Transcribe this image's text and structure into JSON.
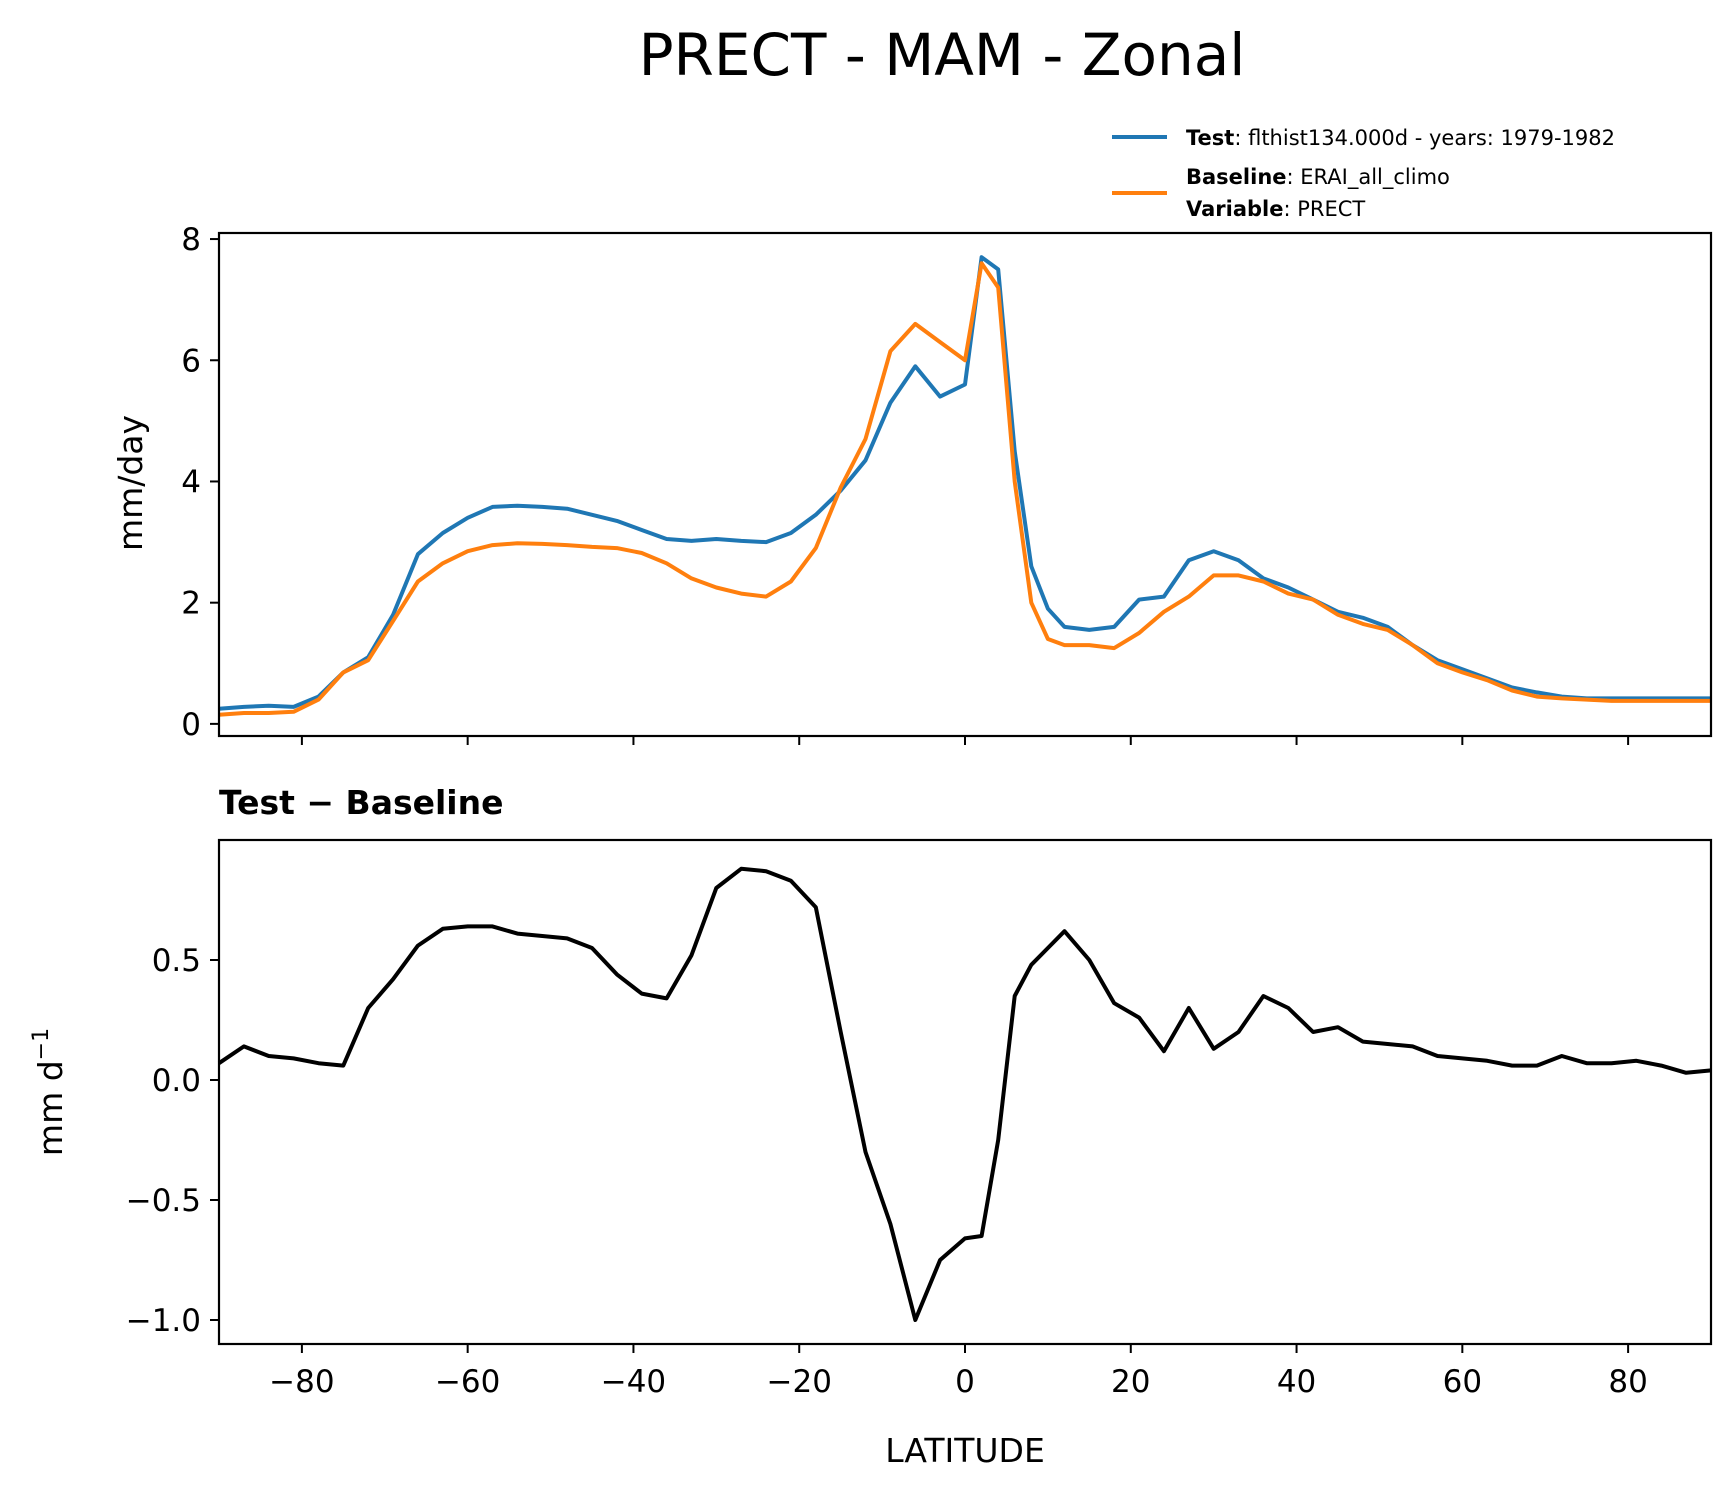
{
  "figure": {
    "title": "PRECT - MAM - Zonal"
  },
  "legend": {
    "entries": [
      {
        "key": "Test",
        "value": "flthist134.000d - years: 1979-1982",
        "color": "#1f77b4"
      },
      {
        "key": "Baseline",
        "value": "ERAI_all_climo",
        "color": "#ff7f0e"
      },
      {
        "key": "Variable",
        "value": "PRECT",
        "color": ""
      }
    ],
    "location": "top-right, outside axes"
  },
  "chart_data": [
    {
      "type": "line",
      "ylabel": "mm/day",
      "xlim": [
        -90,
        90
      ],
      "ylim": [
        -0.2,
        8.1
      ],
      "yticks": [
        "0",
        "2",
        "4",
        "6",
        "8"
      ],
      "ytick_values": [
        0,
        2,
        4,
        6,
        8
      ],
      "xtick_values": [
        -80,
        -60,
        -40,
        -20,
        0,
        20,
        40,
        60,
        80
      ],
      "grid": false,
      "x": [
        -90,
        -87,
        -84,
        -81,
        -78,
        -75,
        -72,
        -69,
        -66,
        -63,
        -60,
        -57,
        -54,
        -51,
        -48,
        -45,
        -42,
        -39,
        -36,
        -33,
        -30,
        -27,
        -24,
        -21,
        -18,
        -15,
        -12,
        -9,
        -6,
        -3,
        0,
        2,
        4,
        6,
        8,
        10,
        12,
        15,
        18,
        21,
        24,
        27,
        30,
        33,
        36,
        39,
        42,
        45,
        48,
        51,
        54,
        57,
        60,
        63,
        66,
        69,
        72,
        75,
        78,
        81,
        84,
        87,
        90
      ],
      "series": [
        {
          "name": "Test",
          "color": "#1f77b4",
          "values": [
            0.25,
            0.28,
            0.3,
            0.28,
            0.45,
            0.85,
            1.1,
            1.8,
            2.8,
            3.15,
            3.4,
            3.58,
            3.6,
            3.58,
            3.55,
            3.45,
            3.35,
            3.2,
            3.05,
            3.02,
            3.05,
            3.02,
            3.0,
            3.15,
            3.45,
            3.85,
            4.35,
            5.3,
            5.9,
            5.4,
            5.6,
            7.7,
            7.5,
            4.5,
            2.6,
            1.9,
            1.6,
            1.55,
            1.6,
            2.05,
            2.1,
            2.7,
            2.85,
            2.7,
            2.4,
            2.25,
            2.05,
            1.85,
            1.75,
            1.6,
            1.3,
            1.05,
            0.9,
            0.75,
            0.6,
            0.52,
            0.45,
            0.42,
            0.42,
            0.42,
            0.42,
            0.42,
            0.42
          ]
        },
        {
          "name": "Baseline",
          "color": "#ff7f0e",
          "values": [
            0.15,
            0.18,
            0.18,
            0.2,
            0.4,
            0.85,
            1.05,
            1.7,
            2.35,
            2.65,
            2.85,
            2.95,
            2.98,
            2.97,
            2.95,
            2.92,
            2.9,
            2.82,
            2.65,
            2.4,
            2.25,
            2.15,
            2.1,
            2.35,
            2.9,
            3.9,
            4.7,
            6.15,
            6.6,
            6.3,
            6.0,
            7.6,
            7.2,
            4.0,
            2.0,
            1.4,
            1.3,
            1.3,
            1.25,
            1.5,
            1.85,
            2.1,
            2.45,
            2.45,
            2.35,
            2.15,
            2.05,
            1.8,
            1.65,
            1.55,
            1.3,
            1.0,
            0.85,
            0.72,
            0.55,
            0.45,
            0.42,
            0.4,
            0.38,
            0.38,
            0.38,
            0.38,
            0.38
          ]
        }
      ]
    },
    {
      "type": "line",
      "title": "Test − Baseline",
      "xlabel": "LATITUDE",
      "ylabel": "mm d",
      "ylabel_sup": "−1",
      "xlim": [
        -90,
        90
      ],
      "ylim": [
        -1.1,
        1.0
      ],
      "yticks": [
        "−1.0",
        "−0.5",
        "0.0",
        "0.5"
      ],
      "ytick_values": [
        -1.0,
        -0.5,
        0.0,
        0.5
      ],
      "xticks": [
        "−80",
        "−60",
        "−40",
        "−20",
        "0",
        "20",
        "40",
        "60",
        "80"
      ],
      "xtick_values": [
        -80,
        -60,
        -40,
        -20,
        0,
        20,
        40,
        60,
        80
      ],
      "grid": false,
      "x": [
        -90,
        -87,
        -84,
        -81,
        -78,
        -75,
        -72,
        -69,
        -66,
        -63,
        -60,
        -57,
        -54,
        -51,
        -48,
        -45,
        -42,
        -39,
        -36,
        -33,
        -30,
        -27,
        -24,
        -21,
        -18,
        -15,
        -12,
        -9,
        -6,
        -3,
        0,
        2,
        4,
        6,
        8,
        10,
        12,
        15,
        18,
        21,
        24,
        27,
        30,
        33,
        36,
        39,
        42,
        45,
        48,
        51,
        54,
        57,
        60,
        63,
        66,
        69,
        72,
        75,
        78,
        81,
        84,
        87,
        90
      ],
      "series": [
        {
          "name": "",
          "color": "#000000",
          "values": [
            0.07,
            0.14,
            0.1,
            0.09,
            0.07,
            0.06,
            0.3,
            0.42,
            0.56,
            0.63,
            0.64,
            0.64,
            0.61,
            0.6,
            0.59,
            0.55,
            0.44,
            0.36,
            0.34,
            0.52,
            0.8,
            0.88,
            0.87,
            0.83,
            0.72,
            0.2,
            -0.3,
            -0.6,
            -1.0,
            -0.75,
            -0.66,
            -0.65,
            -0.25,
            0.35,
            0.48,
            0.55,
            0.62,
            0.5,
            0.32,
            0.26,
            0.12,
            0.3,
            0.13,
            0.2,
            0.35,
            0.3,
            0.2,
            0.22,
            0.16,
            0.15,
            0.14,
            0.1,
            0.09,
            0.08,
            0.06,
            0.06,
            0.1,
            0.07,
            0.07,
            0.08,
            0.06,
            0.03,
            0.04
          ]
        }
      ]
    }
  ]
}
